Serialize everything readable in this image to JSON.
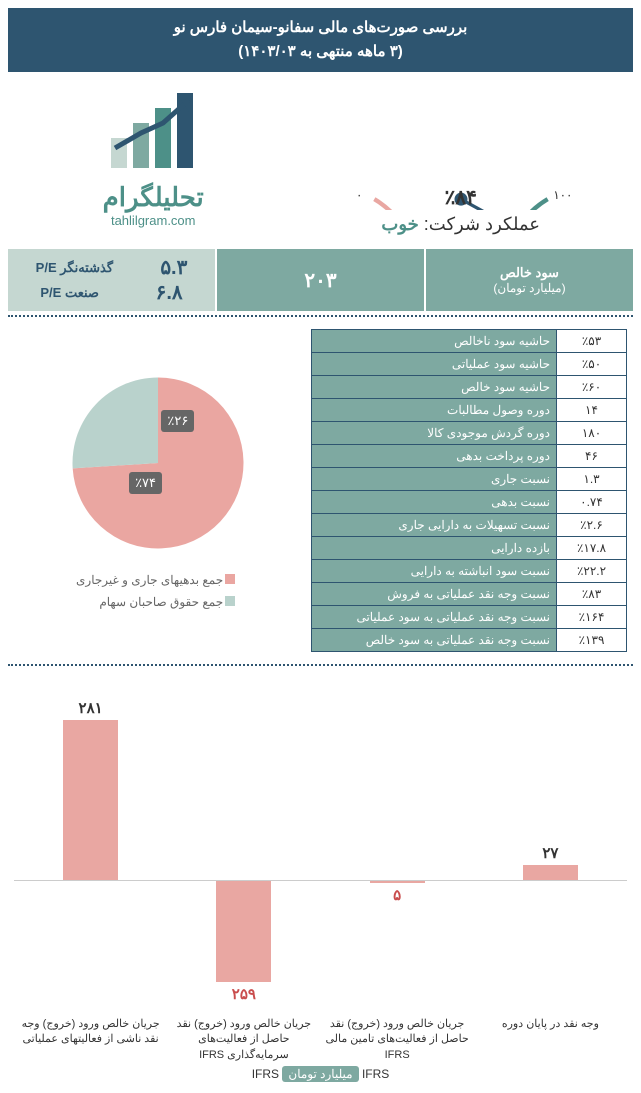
{
  "header": {
    "line1": "بررسی صورت‌های مالی سفانو-سیمان فارس نو",
    "line2": "(۳ ماهه منتهی به ۱۴۰۳/۰۳)"
  },
  "logo": {
    "brand": "تحلیلگرام",
    "site": "tahlilgram.com"
  },
  "gauge": {
    "value_pct": 84,
    "value_label": "٪۸۴",
    "ticks": [
      "۰",
      "۱۰",
      "۲۰",
      "۳۰",
      "۴۰",
      "۵۰",
      "۶۰",
      "۷۰",
      "۸۰",
      "۹۰",
      "۱۰۰"
    ],
    "arc_red": "#e9a7a2",
    "arc_yellow": "#e3c076",
    "arc_green": "#4d9088",
    "needle_color": "#2e5570"
  },
  "performance": {
    "label": "عملکرد شرکت:",
    "value": "خوب",
    "value_color": "#4d9088"
  },
  "summary": {
    "net_profit_label": "سود خالص",
    "net_profit_sub": "(میلیارد تومان)",
    "net_profit_value": "۲۰۳",
    "pe_trailing_label": "گذشته‌نگر P/E",
    "pe_trailing_value": "۵.۳",
    "pe_industry_label": "صنعت P/E",
    "pe_industry_value": "۶.۸",
    "bg_dark": "#7ea9a1",
    "bg_light": "#c5d7d1"
  },
  "ratios": [
    {
      "label": "حاشیه سود ناخالص",
      "value": "٪۵۳"
    },
    {
      "label": "حاشیه سود عملیاتی",
      "value": "٪۵۰"
    },
    {
      "label": "حاشیه سود خالص",
      "value": "٪۶۰"
    },
    {
      "label": "دوره وصول مطالبات",
      "value": "۱۴"
    },
    {
      "label": "دوره گردش موجودی کالا",
      "value": "۱۸۰"
    },
    {
      "label": "دوره پرداخت بدهی",
      "value": "۴۶"
    },
    {
      "label": "نسبت جاری",
      "value": "۱.۳"
    },
    {
      "label": "نسبت بدهی",
      "value": "۰.۷۴"
    },
    {
      "label": "نسبت تسهیلات به دارایی جاری",
      "value": "٪۲.۶"
    },
    {
      "label": "بازده دارایی",
      "value": "٪۱۷.۸"
    },
    {
      "label": "نسبت سود انباشته به دارایی",
      "value": "٪۲۲.۲"
    },
    {
      "label": "نسبت وجه نقد عملیاتی به فروش",
      "value": "٪۸۳"
    },
    {
      "label": "نسبت وجه نقد عملیاتی به سود عملیاتی",
      "value": "٪۱۶۴"
    },
    {
      "label": "نسبت وجه نقد عملیاتی به سود خالص",
      "value": "٪۱۳۹"
    }
  ],
  "pie": {
    "a_pct": 74,
    "a_label": "٪۷۴",
    "a_color": "#eaa6a1",
    "a_name": "جمع بدهیهای جاری و غیرجاری",
    "b_pct": 26,
    "b_label": "٪۲۶",
    "b_color": "#b9d2cc",
    "b_name": "جمع حقوق صاحبان سهام"
  },
  "cashflow": {
    "unit_label": "میلیارد تومان",
    "ifrs": "IFRS",
    "bars": [
      {
        "label": "وجه نقد در پایان دوره",
        "value": 27,
        "value_label": "۲۷",
        "color": "#e9a7a2",
        "negative": false
      },
      {
        "label": "جریان خالص ورود (خروج) نقد حاصل از فعالیت‌های تامین مالی IFRS",
        "value": 5,
        "value_label": "۵",
        "color": "#e9a7a2",
        "negative": true
      },
      {
        "label": "جریان خالص ورود (خروج) نقد حاصل از فعالیت‌های سرمایه‌گذاری IFRS",
        "value": 259,
        "value_label": "۲۵۹",
        "color": "#e9a7a2",
        "negative": true
      },
      {
        "label": "جریان خالص ورود (خروج) وجه نقد ناشی از فعالیتهای عملیاتی",
        "value": 281,
        "value_label": "۲۸۱",
        "color": "#e9a7a2",
        "negative": false
      }
    ]
  }
}
